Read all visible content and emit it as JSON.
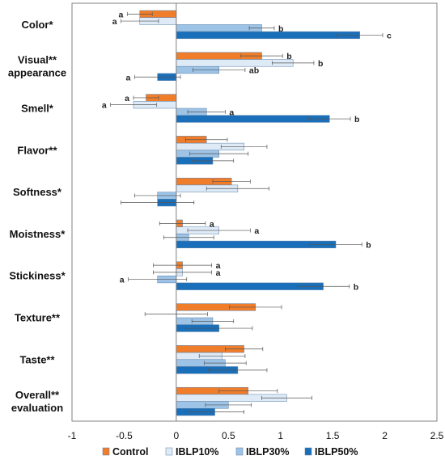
{
  "chart_data": {
    "type": "bar",
    "orientation": "horizontal",
    "title": "",
    "xlabel": "",
    "ylabel": "",
    "xlim": [
      -1,
      2.5
    ],
    "x_ticks": [
      "-1",
      "-0.5",
      "0",
      "0.5",
      "1",
      "1.5",
      "2",
      "2.5"
    ],
    "categories": [
      "Color*",
      "Visual**\nappearance",
      "Smell*",
      "Flavor**",
      "Softness*",
      "Moistness*",
      "Stickiness*",
      "Texture**",
      "Taste**",
      "Overall**\nevaluation"
    ],
    "series": [
      {
        "name": "Control",
        "color": "#f07d2a",
        "values": [
          -0.35,
          0.82,
          -0.29,
          0.29,
          0.53,
          0.06,
          0.06,
          0.76,
          0.65,
          0.69
        ],
        "errors": [
          0.12,
          0.2,
          0.12,
          0.2,
          0.18,
          0.22,
          0.28,
          0.25,
          0.18,
          0.28
        ],
        "letters": [
          "a",
          "b",
          "a",
          "",
          "",
          "a",
          "a",
          "",
          "",
          ""
        ]
      },
      {
        "name": "IBLP10%",
        "color": "#deeaf6",
        "values": [
          -0.35,
          1.12,
          -0.41,
          0.65,
          0.59,
          0.41,
          0.06,
          0.0,
          0.44,
          1.06
        ],
        "errors": [
          0.18,
          0.2,
          0.22,
          0.22,
          0.3,
          0.3,
          0.28,
          0.3,
          0.22,
          0.24
        ],
        "letters": [
          "a",
          "b",
          "a",
          "",
          "",
          "a",
          "a",
          "",
          "",
          ""
        ]
      },
      {
        "name": "IBLP30%",
        "color": "#9dc3e6",
        "values": [
          0.82,
          0.41,
          0.29,
          0.41,
          -0.18,
          0.12,
          -0.18,
          0.35,
          0.47,
          0.5
        ],
        "errors": [
          0.12,
          0.25,
          0.18,
          0.28,
          0.22,
          0.24,
          0.28,
          0.2,
          0.2,
          0.22
        ],
        "letters": [
          "b",
          "ab",
          "a",
          "",
          "",
          "",
          "a",
          "",
          "",
          ""
        ]
      },
      {
        "name": "IBLP50%",
        "color": "#1a6fba",
        "values": [
          1.76,
          -0.18,
          1.47,
          0.35,
          -0.18,
          1.53,
          1.41,
          0.41,
          0.59,
          0.37
        ],
        "errors": [
          0.22,
          0.22,
          0.2,
          0.2,
          0.35,
          0.25,
          0.25,
          0.32,
          0.28,
          0.28
        ],
        "letters": [
          "c",
          "a",
          "b",
          "",
          "",
          "b",
          "b",
          "",
          "",
          ""
        ]
      }
    ],
    "grid": false,
    "legend_position": "bottom"
  }
}
